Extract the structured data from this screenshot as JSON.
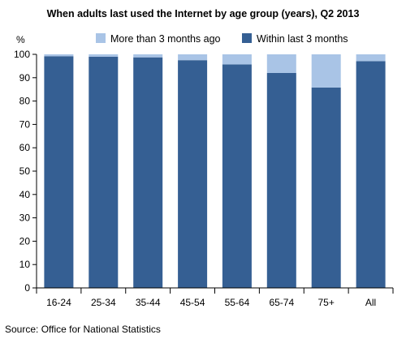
{
  "chart_data": {
    "type": "bar",
    "stacked": true,
    "title": "When adults last used the Internet by age group (years), Q2 2013",
    "ylabel": "%",
    "xlabel": "",
    "categories": [
      "16-24",
      "25-34",
      "35-44",
      "45-54",
      "55-64",
      "65-74",
      "75+",
      "All"
    ],
    "ylim": [
      0,
      100
    ],
    "yticks": [
      0,
      10,
      20,
      30,
      40,
      50,
      60,
      70,
      80,
      90,
      100
    ],
    "grid": false,
    "legend_position": "top",
    "series": [
      {
        "name": "Within last 3 months",
        "color": "#355F93",
        "values": [
          99.2,
          99.0,
          98.7,
          97.5,
          95.7,
          92.0,
          85.8,
          97.1
        ]
      },
      {
        "name": "More than 3 months ago",
        "color": "#A9C4E6",
        "values": [
          0.8,
          1.0,
          1.3,
          2.5,
          4.3,
          8.0,
          14.2,
          2.9
        ]
      }
    ],
    "legend_order": [
      "More than 3 months ago",
      "Within last 3 months"
    ],
    "source": "Source: Office for National Statistics"
  }
}
